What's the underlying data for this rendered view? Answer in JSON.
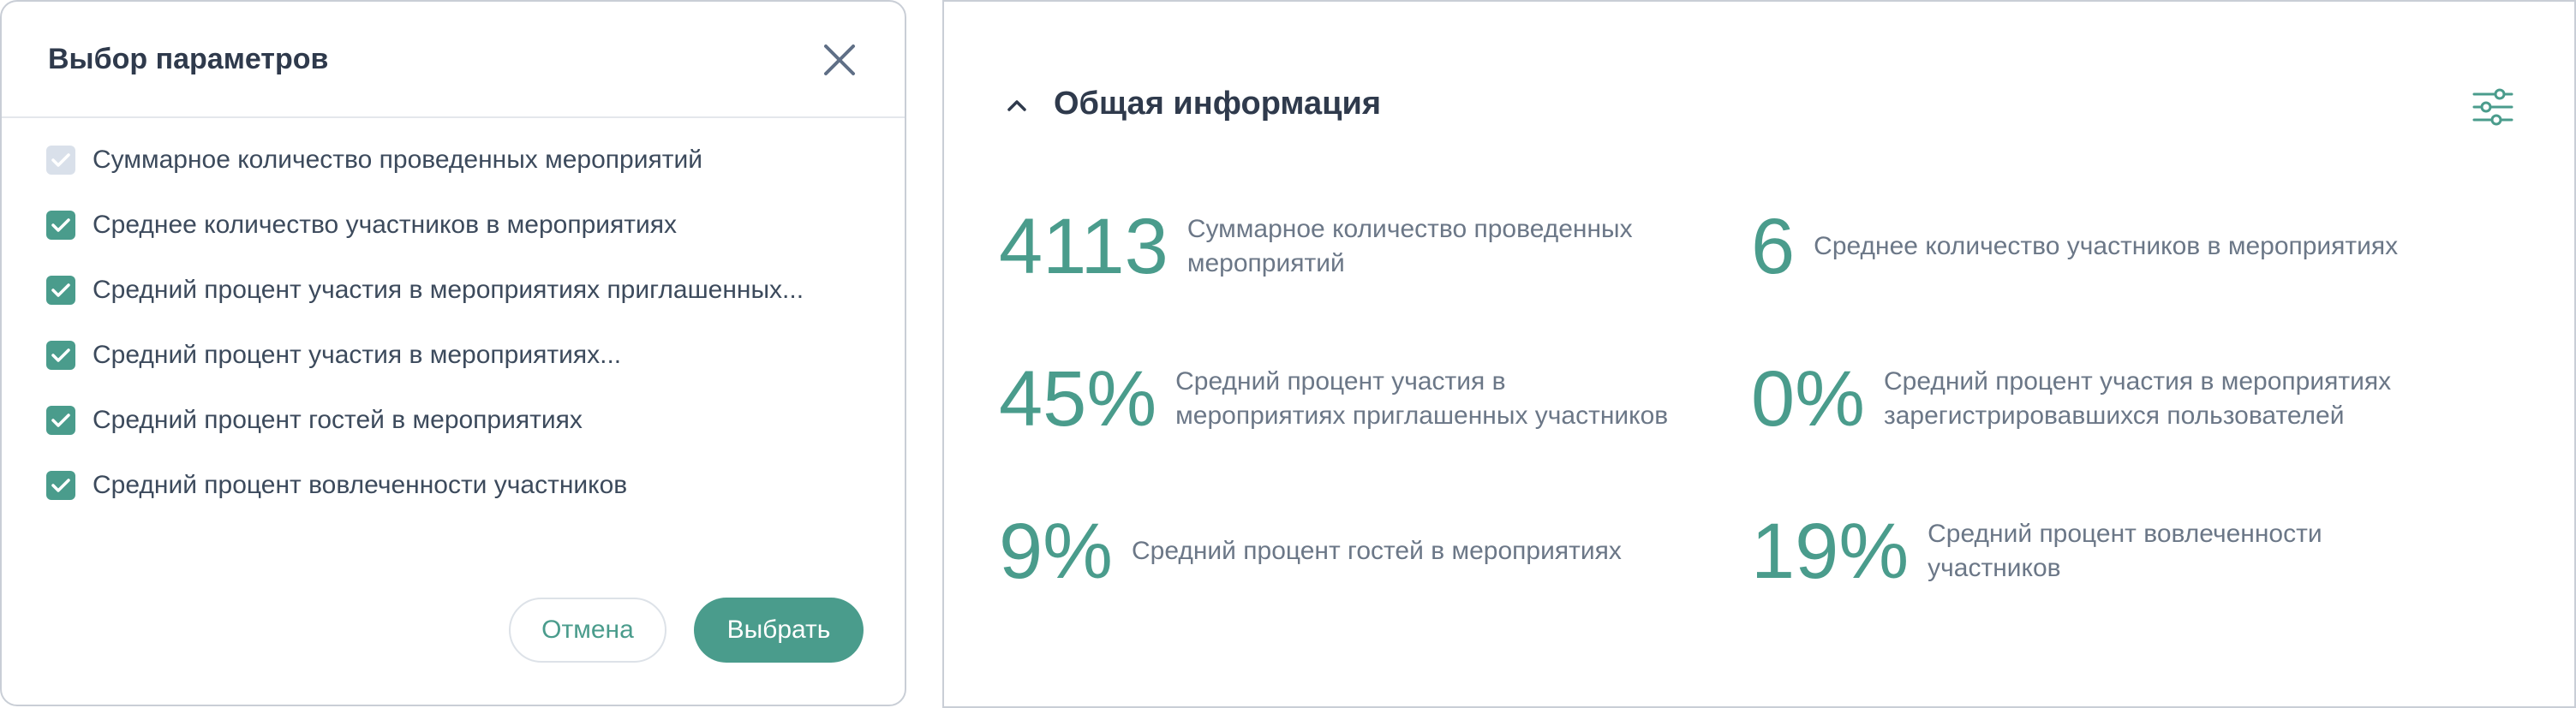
{
  "dialog": {
    "title": "Выбор параметров",
    "options": [
      {
        "label": "Суммарное количество проведенных мероприятий",
        "checked": true,
        "disabled": true
      },
      {
        "label": "Среднее количество участников в мероприятиях",
        "checked": true,
        "disabled": false
      },
      {
        "label": "Средний процент участия в мероприятиях приглашенных...",
        "checked": true,
        "disabled": false
      },
      {
        "label": "Средний процент участия в мероприятиях...",
        "checked": true,
        "disabled": false
      },
      {
        "label": "Средний процент гостей в мероприятиях",
        "checked": true,
        "disabled": false
      },
      {
        "label": "Средний процент вовлеченности участников",
        "checked": true,
        "disabled": false
      }
    ],
    "cancel_label": "Отмена",
    "select_label": "Выбрать"
  },
  "panel": {
    "title": "Общая информация",
    "metrics": [
      {
        "value": "4113",
        "label_lines": [
          "Суммарное количество проведенных",
          "мероприятий"
        ]
      },
      {
        "value": "6",
        "label_lines": [
          "Среднее количество участников в мероприятиях"
        ]
      },
      {
        "value": "45%",
        "label_lines": [
          "Средний процент участия в",
          "мероприятиях приглашенных участников"
        ]
      },
      {
        "value": "0%",
        "label_lines": [
          "Средний процент участия в мероприятиях",
          "зарегистрировавшихся пользователей"
        ]
      },
      {
        "value": "9%",
        "label_lines": [
          "Средний процент гостей в мероприятиях"
        ]
      },
      {
        "value": "19%",
        "label_lines": [
          "Средний процент вовлеченности",
          "участников"
        ]
      }
    ]
  },
  "colors": {
    "accent": "#4a9c8c",
    "text": "#3c4a5c",
    "muted": "#6b7787",
    "border": "#c9ced6"
  },
  "icons": {
    "close": "close-icon",
    "chevron": "chevron-up-icon",
    "settings": "sliders-icon",
    "check": "check-icon"
  }
}
